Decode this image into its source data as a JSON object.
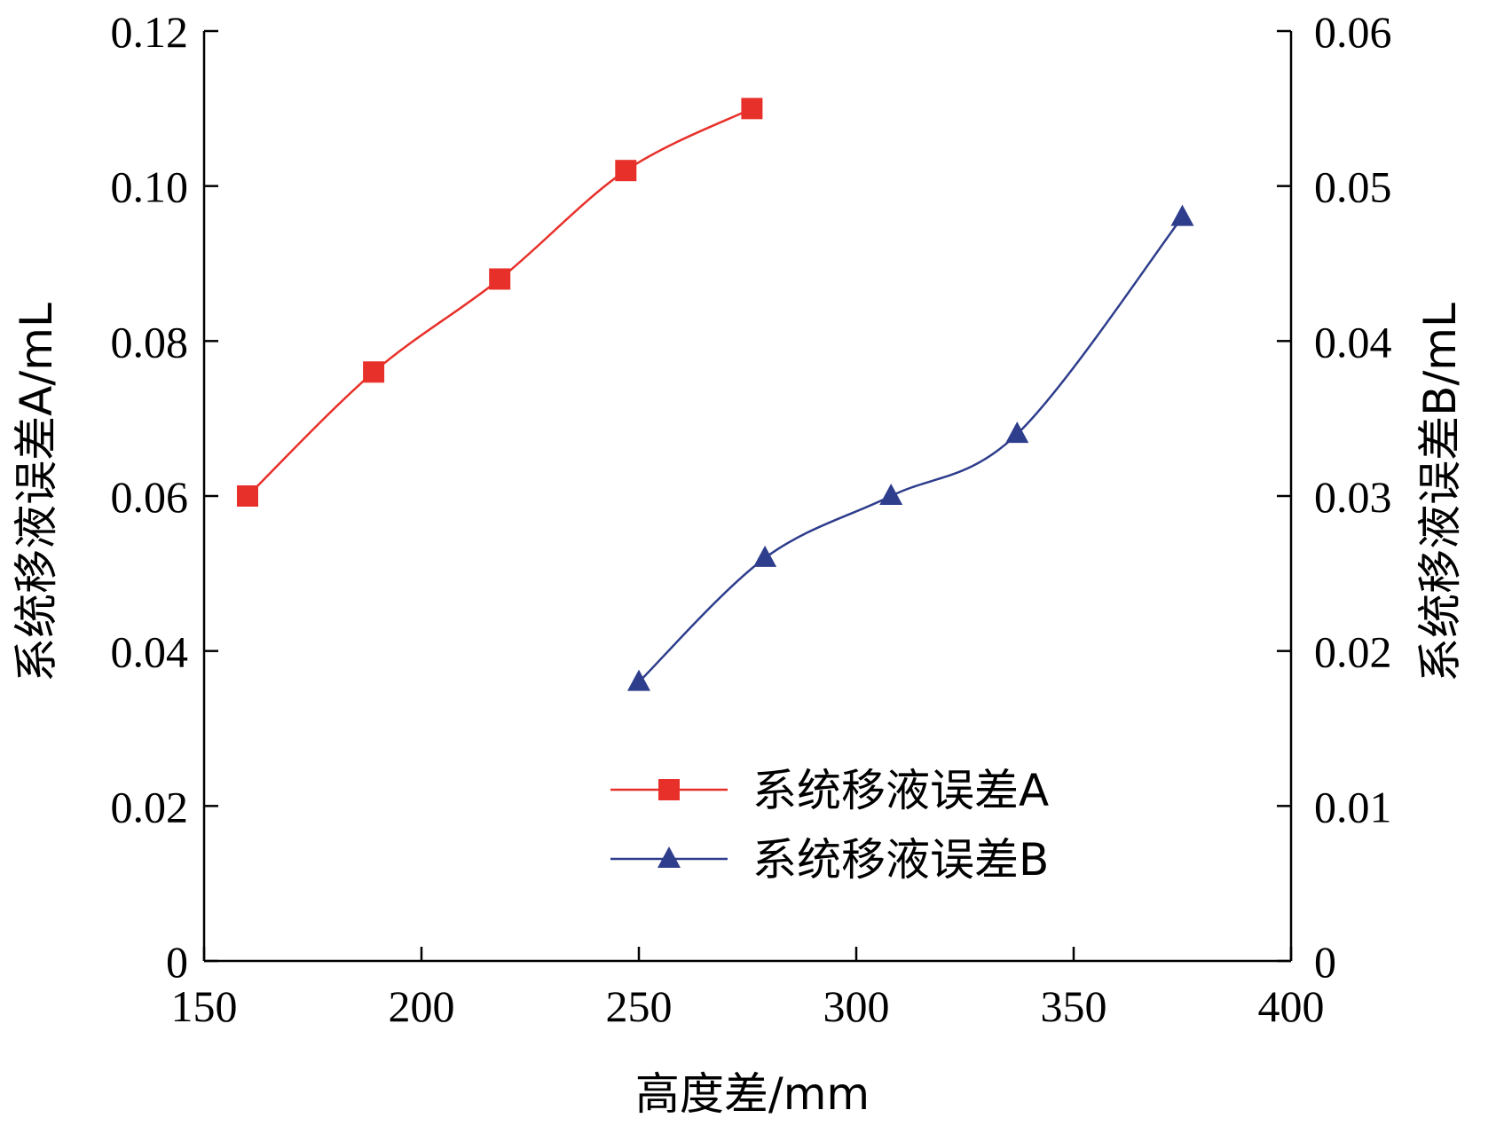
{
  "chart_data": {
    "type": "line",
    "xlabel": "高度差/mm",
    "ylabel_left": "系统移液误差A/mL",
    "ylabel_right": "系统移液误差B/mL",
    "xlim": [
      150,
      400
    ],
    "xticks": [
      "150",
      "200",
      "250",
      "300",
      "350",
      "400"
    ],
    "ylim_left": [
      0,
      0.12
    ],
    "yticks_left": [
      "0",
      "0.02",
      "0.04",
      "0.06",
      "0.08",
      "0.10",
      "0.12"
    ],
    "ylim_right": [
      0,
      0.06
    ],
    "yticks_right": [
      "0",
      "0.01",
      "0.02",
      "0.03",
      "0.04",
      "0.05",
      "0.06"
    ],
    "grid": false,
    "legend_position": "bottom-center",
    "series": [
      {
        "name": "系统移液误差A",
        "axis": "left",
        "color": "#e8302a",
        "marker": "square",
        "x": [
          160,
          189,
          218,
          247,
          276
        ],
        "y": [
          0.06,
          0.076,
          0.088,
          0.102,
          0.11
        ]
      },
      {
        "name": "系统移液误差B",
        "axis": "right",
        "color": "#2e3d8c",
        "marker": "triangle",
        "x": [
          250,
          279,
          308,
          337,
          375
        ],
        "y": [
          0.018,
          0.026,
          0.03,
          0.034,
          0.048
        ]
      }
    ]
  }
}
